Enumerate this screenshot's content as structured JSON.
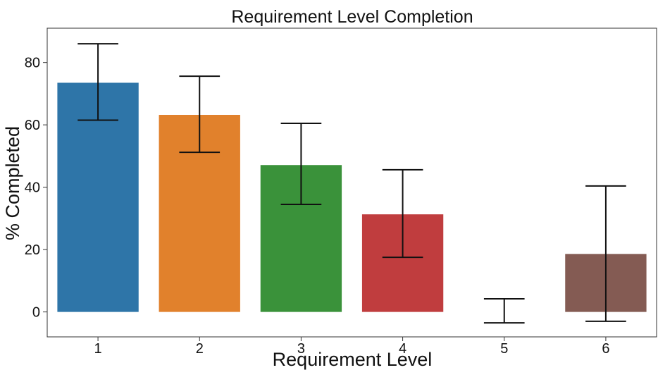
{
  "chart_data": {
    "type": "bar",
    "title": "Requirement Level Completion",
    "xlabel": "Requirement Level",
    "ylabel": "% Completed",
    "categories": [
      "1",
      "2",
      "3",
      "4",
      "5",
      "6"
    ],
    "values": [
      73.5,
      63.2,
      47.1,
      31.3,
      0.0,
      18.6
    ],
    "error_low": [
      61.5,
      51.2,
      34.5,
      17.5,
      -3.5,
      -3.0
    ],
    "error_high": [
      86.0,
      75.6,
      60.5,
      45.6,
      4.2,
      40.4
    ],
    "ylim": [
      -8,
      91
    ],
    "yticks": [
      0,
      20,
      40,
      60,
      80
    ],
    "grid": false,
    "legend": "none",
    "colors": [
      "#2e75a8",
      "#e1812c",
      "#3a923a",
      "#c03d3e",
      "#9372b2",
      "#845b53"
    ]
  }
}
